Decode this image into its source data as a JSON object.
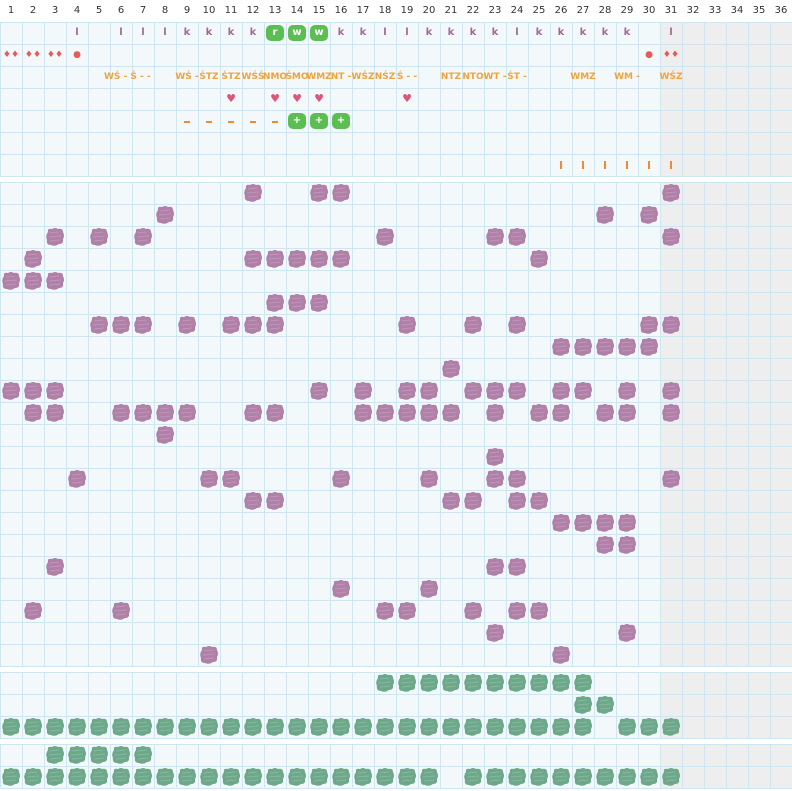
{
  "columns": [
    "1",
    "2",
    "3",
    "4",
    "5",
    "6",
    "7",
    "8",
    "9",
    "10",
    "11",
    "12",
    "13",
    "14",
    "15",
    "16",
    "17",
    "18",
    "19",
    "20",
    "21",
    "22",
    "23",
    "24",
    "25",
    "26",
    "27",
    "28",
    "29",
    "30",
    "31",
    "32",
    "33",
    "34",
    "35",
    "36"
  ],
  "colors": {
    "grid": "#cfe5ef",
    "bg": "#f3f8fb",
    "gray_cols": "#eeeeee",
    "header_text": "#333333",
    "purple": "#b080a8",
    "green": "#6ea88a",
    "red": "#e85a5a",
    "mauve": "#a06a93",
    "orange": "#f0a33a",
    "bright_green": "#5cbd52"
  },
  "row1_letters": [
    {
      "col": 4,
      "t": "l"
    },
    {
      "col": 6,
      "t": "l"
    },
    {
      "col": 7,
      "t": "l"
    },
    {
      "col": 8,
      "t": "l"
    },
    {
      "col": 9,
      "t": "k"
    },
    {
      "col": 10,
      "t": "k"
    },
    {
      "col": 11,
      "t": "k"
    },
    {
      "col": 12,
      "t": "k"
    },
    {
      "col": 13,
      "t": "r",
      "box": true
    },
    {
      "col": 14,
      "t": "w",
      "box": true
    },
    {
      "col": 15,
      "t": "w",
      "box": true
    },
    {
      "col": 16,
      "t": "k"
    },
    {
      "col": 17,
      "t": "k"
    },
    {
      "col": 18,
      "t": "l"
    },
    {
      "col": 19,
      "t": "l"
    },
    {
      "col": 20,
      "t": "k"
    },
    {
      "col": 21,
      "t": "k"
    },
    {
      "col": 22,
      "t": "k"
    },
    {
      "col": 23,
      "t": "k"
    },
    {
      "col": 24,
      "t": "l"
    },
    {
      "col": 25,
      "t": "k"
    },
    {
      "col": 26,
      "t": "k"
    },
    {
      "col": 27,
      "t": "k"
    },
    {
      "col": 28,
      "t": "k"
    },
    {
      "col": 29,
      "t": "k"
    },
    {
      "col": 31,
      "t": "l"
    }
  ],
  "row2_marks": [
    {
      "col": 1,
      "t": "♦♦"
    },
    {
      "col": 2,
      "t": "♦♦"
    },
    {
      "col": 3,
      "t": "♦♦"
    },
    {
      "col": 4,
      "t": "●"
    },
    {
      "col": 30,
      "t": "●"
    },
    {
      "col": 31,
      "t": "♦♦"
    }
  ],
  "row3_codes": [
    {
      "col": 6,
      "t": "WŚ - Ś -  -"
    },
    {
      "col": 9,
      "t": "WŚ -"
    },
    {
      "col": 10,
      "t": "ŚTZ"
    },
    {
      "col": 11,
      "t": "ŚTZ"
    },
    {
      "col": 12,
      "t": "WŚŚ"
    },
    {
      "col": 13,
      "t": "NMO"
    },
    {
      "col": 14,
      "t": "ŚMO"
    },
    {
      "col": 15,
      "t": "WMZ"
    },
    {
      "col": 16,
      "t": "NT -"
    },
    {
      "col": 17,
      "t": "WŚZ"
    },
    {
      "col": 18,
      "t": "NŚZ"
    },
    {
      "col": 19,
      "t": "Ś -  -"
    },
    {
      "col": 21,
      "t": "NTZ"
    },
    {
      "col": 22,
      "t": "NTO"
    },
    {
      "col": 23,
      "t": "WT -"
    },
    {
      "col": 24,
      "t": "ŚT -"
    },
    {
      "col": 27,
      "t": "WMZ"
    },
    {
      "col": 29,
      "t": "WM -"
    },
    {
      "col": 31,
      "t": "WŚZ"
    }
  ],
  "row4_hearts": [
    11,
    13,
    14,
    15,
    19
  ],
  "row5_dashes": [
    9,
    10,
    11,
    12,
    13
  ],
  "row5_plus": [
    14,
    15,
    16
  ],
  "row6_ticks": [
    26,
    27,
    28,
    29,
    30,
    31
  ],
  "section2_blobs": [
    [
      12,
      15,
      16,
      31
    ],
    [
      8,
      28,
      30
    ],
    [
      3,
      5,
      7,
      18,
      23,
      24,
      31
    ],
    [
      2,
      12,
      13,
      14,
      15,
      16,
      25
    ],
    [
      1,
      2,
      3
    ],
    [
      13,
      14,
      15
    ],
    [
      5,
      6,
      7,
      9,
      11,
      12,
      13,
      19,
      22,
      24,
      30,
      31
    ],
    [
      26,
      27,
      28,
      29,
      30
    ],
    [
      21
    ],
    [
      1,
      2,
      3,
      15,
      17,
      19,
      20,
      22,
      23,
      24,
      26,
      27,
      29,
      31
    ],
    [
      2,
      3,
      6,
      7,
      8,
      9,
      12,
      13,
      17,
      18,
      19,
      20,
      21,
      23,
      25,
      26,
      28,
      29,
      31
    ],
    [
      8
    ],
    [
      23
    ],
    [
      4,
      10,
      11,
      16,
      20,
      23,
      24,
      31
    ],
    [
      12,
      13,
      21,
      22,
      24,
      25
    ],
    [
      26,
      27,
      28,
      29
    ],
    [
      28,
      29
    ],
    [
      3,
      23,
      24
    ],
    [
      16,
      20
    ],
    [
      2,
      6,
      18,
      19,
      22,
      24,
      25
    ],
    [
      23,
      29
    ],
    [
      10,
      26
    ]
  ],
  "section3_blobs": [
    [
      18,
      19,
      20,
      21,
      22,
      23,
      24,
      25,
      26,
      27
    ],
    [
      27,
      28
    ],
    [
      1,
      2,
      3,
      4,
      5,
      6,
      7,
      8,
      9,
      10,
      11,
      12,
      13,
      14,
      15,
      16,
      17,
      18,
      19,
      20,
      21,
      22,
      23,
      24,
      25,
      26,
      27,
      29,
      30,
      31
    ]
  ],
  "section4_blobs": [
    [
      3,
      4,
      5,
      6,
      7
    ],
    [
      1,
      2,
      3,
      4,
      5,
      6,
      7,
      8,
      9,
      10,
      11,
      12,
      13,
      14,
      15,
      16,
      17,
      18,
      19,
      20,
      22,
      23,
      24,
      25,
      26,
      27,
      28,
      29,
      30,
      31
    ]
  ]
}
